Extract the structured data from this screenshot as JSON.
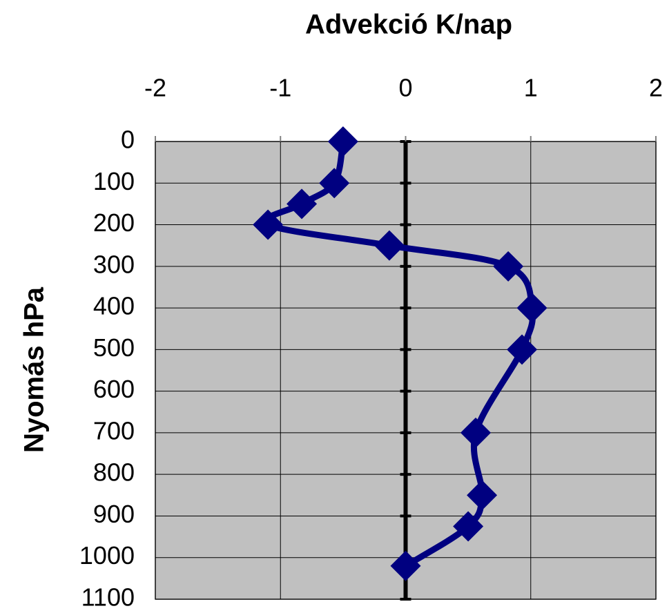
{
  "chart_data": {
    "type": "line",
    "x_axis_label": "Advekció K/nap",
    "y_axis_label": "Nyomás hPa",
    "x": [
      -0.5,
      -0.57,
      -0.83,
      -1.1,
      -0.13,
      0.82,
      1.01,
      0.93,
      0.56,
      0.61,
      0.5,
      0.0
    ],
    "values": [
      0,
      100,
      150,
      200,
      250,
      300,
      400,
      500,
      700,
      850,
      925,
      1020
    ],
    "color": "#000080",
    "marker": "diamond",
    "smooth": true,
    "xlim": [
      -2,
      2
    ],
    "xticks": [
      -2,
      -1,
      0,
      1,
      2
    ],
    "ylim": [
      0,
      1100
    ],
    "yticks": [
      0,
      100,
      200,
      300,
      400,
      500,
      600,
      700,
      800,
      900,
      1000,
      1100
    ],
    "y_inverted": true,
    "x_axis_position": "top",
    "grid": true,
    "plot_background": "#c0c0c0"
  }
}
